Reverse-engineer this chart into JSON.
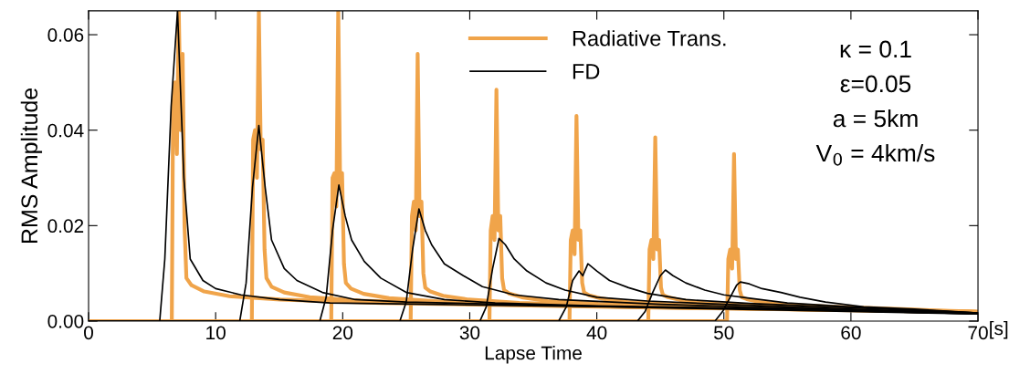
{
  "chart_data": {
    "type": "line",
    "xlabel": "Lapse Time",
    "ylabel": "RMS Amplitude",
    "xlim": [
      0,
      70
    ],
    "xticks": [
      0,
      10,
      20,
      30,
      40,
      50,
      60,
      70
    ],
    "ylim": [
      0,
      0.065
    ],
    "yticks": [
      {
        "value": 0,
        "label": "0.00"
      },
      {
        "value": 0.02,
        "label": "0.02"
      },
      {
        "value": 0.04,
        "label": "0.04"
      },
      {
        "value": 0.06,
        "label": "0.06"
      }
    ],
    "grid": false,
    "legend": "top right",
    "line_style": "solid",
    "marker": "none",
    "annotations": [
      "κ = 0.1",
      "ε=0.05",
      "a = 5km",
      "V$_{0}$ = 4km/s",
      "[s]"
    ],
    "series": [
      {
        "name": "Radiative Trans.",
        "color": "#f0a44a",
        "x": [
          0,
          6.55,
          6.65,
          6.8,
          6.95,
          7.1,
          7.25,
          7.4,
          7.55,
          7.7,
          8.1,
          9.1,
          11.1,
          15.1,
          23.1,
          40,
          70
        ],
        "values": [
          0,
          0,
          0.045,
          0.05,
          0.035,
          0.065,
          0.04,
          0.056,
          0.02,
          0.009,
          0.0075,
          0.0062,
          0.0052,
          0.0045,
          0.0038,
          0.003,
          0.0019
        ]
      },
      {
        "color": "#f0a44a",
        "x": [
          0,
          12.85,
          12.95,
          13.1,
          13.25,
          13.4,
          13.55,
          13.7,
          13.85,
          14,
          14.4,
          15.4,
          17.4,
          21.4,
          29.4,
          45,
          70
        ],
        "values": [
          0,
          0,
          0.038,
          0.04,
          0.03,
          0.065,
          0.036,
          0.038,
          0.015,
          0.009,
          0.0072,
          0.006,
          0.005,
          0.0043,
          0.0036,
          0.0029,
          0.0019
        ]
      },
      {
        "color": "#f0a44a",
        "x": [
          0,
          19.1,
          19.2,
          19.35,
          19.5,
          19.65,
          19.8,
          19.95,
          20.1,
          20.25,
          20.65,
          21.65,
          23.65,
          27.65,
          35.65,
          50,
          70
        ],
        "values": [
          0,
          0,
          0.03,
          0.031,
          0.024,
          0.065,
          0.028,
          0.031,
          0.012,
          0.008,
          0.0068,
          0.0057,
          0.0048,
          0.0041,
          0.0034,
          0.0027,
          0.0019
        ]
      },
      {
        "color": "#f0a44a",
        "x": [
          0,
          25.35,
          25.45,
          25.6,
          25.75,
          25.9,
          26.05,
          26.2,
          26.35,
          26.5,
          26.9,
          27.9,
          29.9,
          33.9,
          41.9,
          55,
          70
        ],
        "values": [
          0,
          0,
          0.022,
          0.025,
          0.019,
          0.056,
          0.022,
          0.025,
          0.01,
          0.007,
          0.0062,
          0.0053,
          0.0045,
          0.0038,
          0.0032,
          0.0026,
          0.0019
        ]
      },
      {
        "color": "#f0a44a",
        "x": [
          0,
          31.55,
          31.65,
          31.8,
          31.95,
          32.1,
          32.25,
          32.4,
          32.55,
          32.7,
          33.1,
          34.1,
          36.1,
          40.1,
          48.1,
          60,
          70
        ],
        "values": [
          0,
          0,
          0.019,
          0.022,
          0.017,
          0.0485,
          0.019,
          0.022,
          0.009,
          0.0065,
          0.0058,
          0.005,
          0.0042,
          0.0036,
          0.003,
          0.0024,
          0.0019
        ]
      },
      {
        "color": "#f0a44a",
        "x": [
          0,
          37.85,
          37.95,
          38.1,
          38.25,
          38.4,
          38.55,
          38.7,
          38.85,
          39,
          39.4,
          40.4,
          42.4,
          46.4,
          54.4,
          62,
          70
        ],
        "values": [
          0,
          0,
          0.017,
          0.019,
          0.014,
          0.043,
          0.017,
          0.019,
          0.008,
          0.006,
          0.0054,
          0.0047,
          0.004,
          0.0034,
          0.0028,
          0.0023,
          0.0019
        ]
      },
      {
        "color": "#f0a44a",
        "x": [
          0,
          44.05,
          44.15,
          44.3,
          44.45,
          44.6,
          44.75,
          44.9,
          45.05,
          45.2,
          45.6,
          46.6,
          48.6,
          52.6,
          60.6,
          65,
          70
        ],
        "values": [
          0,
          0,
          0.015,
          0.017,
          0.013,
          0.0385,
          0.015,
          0.017,
          0.007,
          0.0055,
          0.005,
          0.0044,
          0.0037,
          0.0032,
          0.0026,
          0.0023,
          0.0019
        ]
      },
      {
        "color": "#f0a44a",
        "x": [
          0,
          50.25,
          50.35,
          50.5,
          50.65,
          50.8,
          50.95,
          51.1,
          51.25,
          51.4,
          51.8,
          52.8,
          54.8,
          58.8,
          64,
          67,
          70
        ],
        "values": [
          0,
          0,
          0.013,
          0.015,
          0.011,
          0.035,
          0.013,
          0.015,
          0.0065,
          0.005,
          0.0046,
          0.004,
          0.0034,
          0.003,
          0.0025,
          0.0022,
          0.002
        ]
      },
      {
        "name": "FD",
        "color": "#000000",
        "x": [
          0,
          5.6,
          6.0,
          6.5,
          7.0,
          7.5,
          8.0,
          9.0,
          10,
          12,
          15,
          19,
          27,
          40,
          55,
          70
        ],
        "values": [
          0,
          0,
          0.013,
          0.045,
          0.065,
          0.03,
          0.013,
          0.0085,
          0.0068,
          0.0055,
          0.0045,
          0.0038,
          0.0035,
          0.003,
          0.0025,
          0.0015
        ]
      },
      {
        "color": "#000000",
        "x": [
          0,
          11.9,
          12.4,
          12.9,
          13.4,
          13.9,
          14.4,
          15.4,
          16.4,
          18.4,
          21,
          25,
          33,
          45,
          70
        ],
        "values": [
          0,
          0,
          0.008,
          0.028,
          0.041,
          0.028,
          0.017,
          0.011,
          0.0085,
          0.006,
          0.0045,
          0.004,
          0.0035,
          0.0028,
          0.0015
        ]
      },
      {
        "color": "#000000",
        "x": [
          0,
          18.2,
          18.7,
          19.2,
          19.7,
          20.2,
          20.7,
          21.7,
          23,
          25,
          28,
          32,
          40,
          55,
          70
        ],
        "values": [
          0,
          0,
          0.005,
          0.019,
          0.0285,
          0.022,
          0.017,
          0.0125,
          0.009,
          0.006,
          0.0045,
          0.0038,
          0.0032,
          0.0025,
          0.0015
        ]
      },
      {
        "color": "#000000",
        "x": [
          0,
          24.5,
          25.0,
          25.5,
          26.0,
          26.5,
          27,
          28,
          29.5,
          31,
          33.5,
          37,
          45,
          58,
          70
        ],
        "values": [
          0,
          0,
          0.004,
          0.015,
          0.0235,
          0.019,
          0.016,
          0.012,
          0.0095,
          0.0072,
          0.0055,
          0.0045,
          0.0035,
          0.0025,
          0.0016
        ]
      },
      {
        "color": "#000000",
        "x": [
          0,
          30.8,
          31.3,
          31.8,
          32.3,
          32.8,
          33.5,
          34.5,
          36,
          37.5,
          40,
          44,
          50,
          60,
          70
        ],
        "values": [
          0,
          0,
          0.003,
          0.011,
          0.0173,
          0.016,
          0.013,
          0.0105,
          0.008,
          0.0065,
          0.005,
          0.0042,
          0.0035,
          0.0025,
          0.0016
        ]
      },
      {
        "color": "#000000",
        "x": [
          0,
          37,
          37.6,
          38.1,
          38.6,
          38.9,
          39.3,
          40,
          41,
          42.5,
          44,
          47,
          52,
          60,
          70
        ],
        "values": [
          0,
          0,
          0.003,
          0.0085,
          0.0105,
          0.0095,
          0.012,
          0.0105,
          0.0085,
          0.007,
          0.0058,
          0.0045,
          0.0037,
          0.0028,
          0.0017
        ]
      },
      {
        "color": "#000000",
        "x": [
          0,
          43.2,
          43.8,
          44.4,
          45.0,
          45.4,
          46,
          47,
          48.5,
          50,
          52,
          55,
          60,
          70
        ],
        "values": [
          0,
          0,
          0.002,
          0.006,
          0.0095,
          0.0107,
          0.0095,
          0.008,
          0.0065,
          0.0055,
          0.0048,
          0.0038,
          0.003,
          0.0017
        ]
      },
      {
        "color": "#000000",
        "x": [
          0,
          49.3,
          49.9,
          50.5,
          51.0,
          51.3,
          52,
          53,
          54.5,
          56,
          58,
          61,
          65,
          70
        ],
        "values": [
          0,
          0,
          0.002,
          0.005,
          0.0075,
          0.0082,
          0.0078,
          0.0068,
          0.006,
          0.005,
          0.004,
          0.003,
          0.0025,
          0.0017
        ]
      }
    ]
  }
}
